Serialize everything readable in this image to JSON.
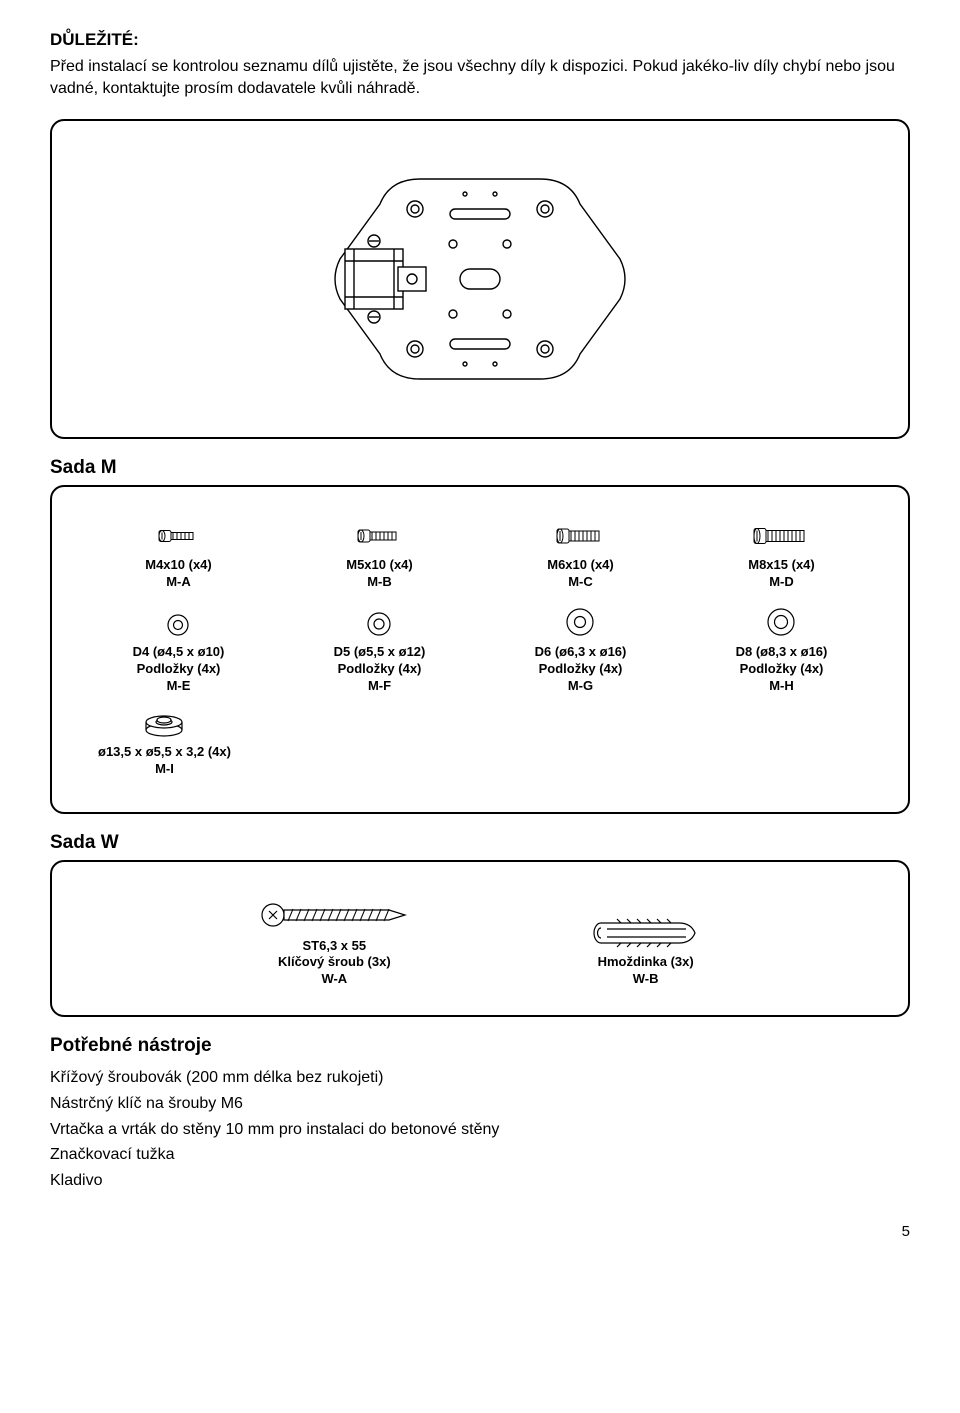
{
  "important_heading": "DŮLEŽITÉ:",
  "intro_text": "Před instalací se kontrolou seznamu dílů ujistěte, že jsou všechny díly k dispozici. Pokud jakéko-liv díly chybí nebo jsou vadné, kontaktujte prosím dodavatele kvůli náhradě.",
  "sada_m_title": "Sada M",
  "sada_w_title": "Sada W",
  "screws": [
    {
      "line1": "M4x10 (x4)",
      "line2": "M-A",
      "len": 22,
      "dia": 7
    },
    {
      "line1": "M5x10 (x4)",
      "line2": "M-B",
      "len": 26,
      "dia": 8
    },
    {
      "line1": "M6x10 (x4)",
      "line2": "M-C",
      "len": 30,
      "dia": 10
    },
    {
      "line1": "M8x15 (x4)",
      "line2": "M-D",
      "len": 38,
      "dia": 11
    }
  ],
  "washers": [
    {
      "line1": "D4 (ø4,5 x ø10)",
      "line2": "Podložky (4x)",
      "line3": "M-E",
      "outer": 20,
      "inner": 9
    },
    {
      "line1": "D5 (ø5,5 x ø12)",
      "line2": "Podložky (4x)",
      "line3": "M-F",
      "outer": 22,
      "inner": 10
    },
    {
      "line1": "D6 (ø6,3 x ø16)",
      "line2": "Podložky (4x)",
      "line3": "M-G",
      "outer": 26,
      "inner": 11
    },
    {
      "line1": "D8 (ø8,3 x ø16)",
      "line2": "Podložky (4x)",
      "line3": "M-H",
      "outer": 26,
      "inner": 13
    }
  ],
  "spacer": {
    "line1": "ø13,5 x ø5,5 x 3,2 (4x)",
    "line2": "M-I"
  },
  "sada_w_items": [
    {
      "line1": "ST6,3 x 55",
      "line2": "Klíčový šroub (3x)",
      "line3": "W-A"
    },
    {
      "line1": "Hmoždinka (3x)",
      "line2": "W-B"
    }
  ],
  "tools_title": "Potřebné nástroje",
  "tools": [
    "Křížový šroubovák (200 mm délka bez rukojeti)",
    "Nástrčný klíč na šrouby M6",
    "Vrtačka a vrták do stěny 10 mm pro instalaci do betonové stěny",
    "Značkovací tužka",
    "Kladivo"
  ],
  "page_number": "5",
  "colors": {
    "stroke": "#000000",
    "fill": "#ffffff"
  }
}
